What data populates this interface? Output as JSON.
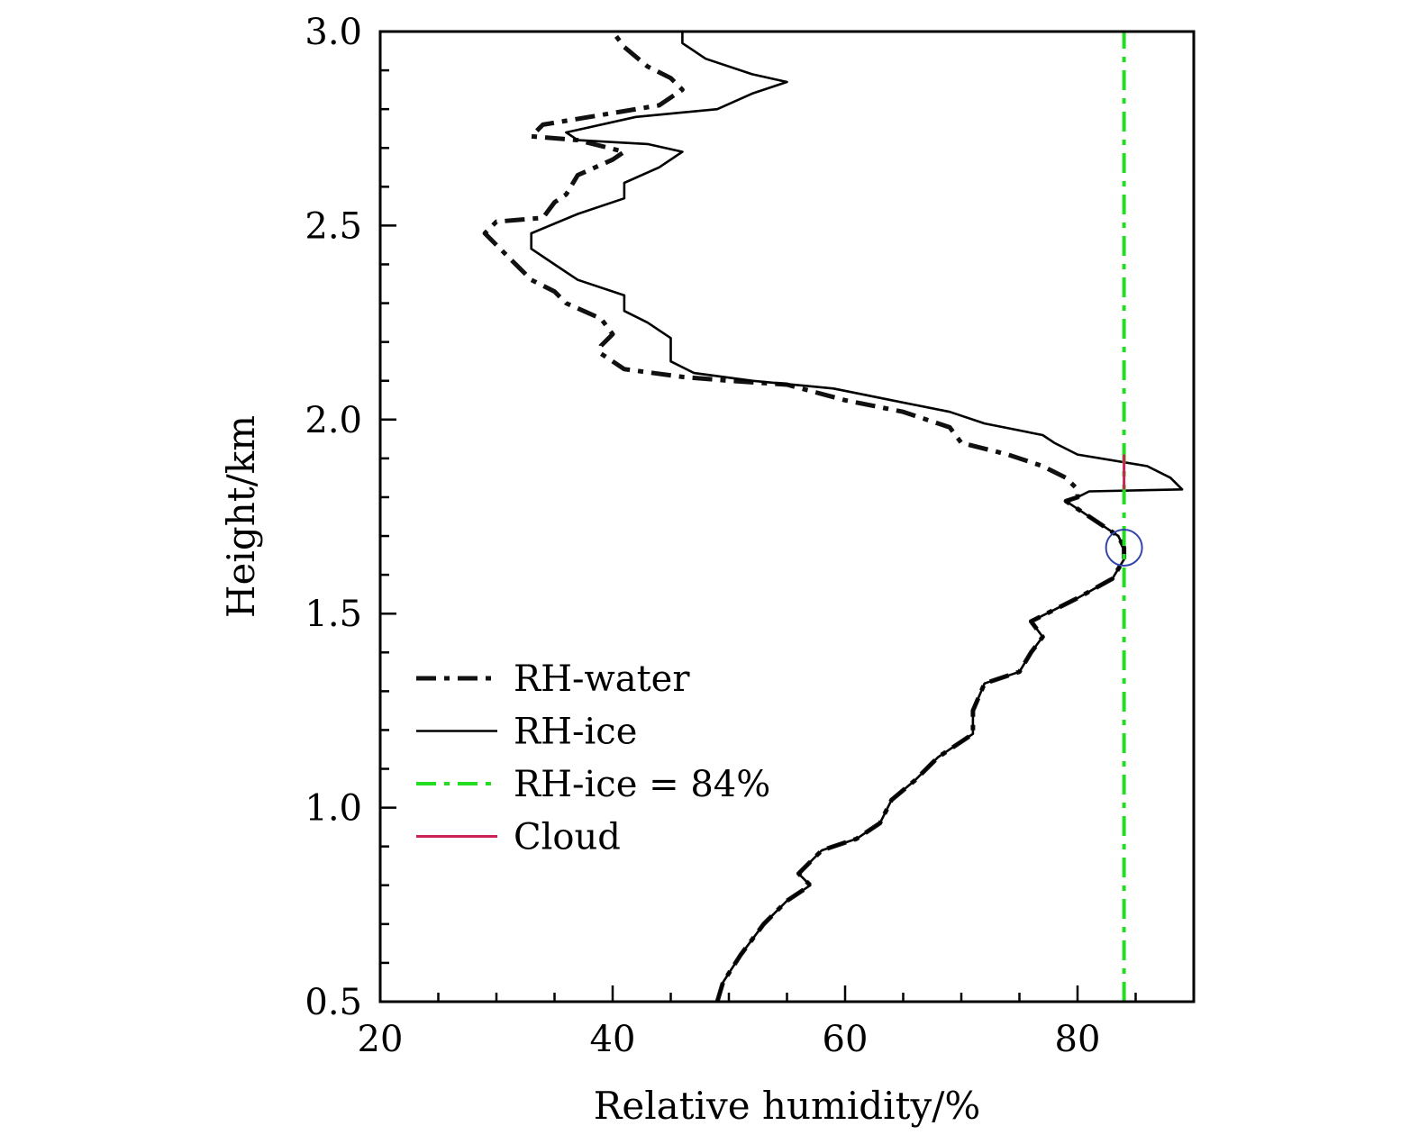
{
  "chart_data": {
    "type": "line",
    "title": "",
    "xlabel": "Relative humidity/%",
    "ylabel": "Height/km",
    "xlim": [
      20,
      90
    ],
    "ylim": [
      0.5,
      3.0
    ],
    "x_ticks": [
      {
        "value": 20,
        "label": "20"
      },
      {
        "value": 40,
        "label": "40"
      },
      {
        "value": 60,
        "label": "60"
      },
      {
        "value": 80,
        "label": "80"
      }
    ],
    "y_ticks": [
      {
        "value": 0.5,
        "label": "0.5"
      },
      {
        "value": 1.0,
        "label": "1.0"
      },
      {
        "value": 1.5,
        "label": "1.5"
      },
      {
        "value": 2.0,
        "label": "2.0"
      },
      {
        "value": 2.5,
        "label": "2.5"
      },
      {
        "value": 3.0,
        "label": "3.0"
      }
    ],
    "grid": false,
    "legend_position": "lower-left",
    "series": [
      {
        "name": "RH-water",
        "style": "dash-dot",
        "color": "#111111",
        "points": [
          [
            49.0,
            0.5
          ],
          [
            49.5,
            0.55
          ],
          [
            51.0,
            0.62
          ],
          [
            53.0,
            0.7
          ],
          [
            55.0,
            0.76
          ],
          [
            57.0,
            0.8
          ],
          [
            56.0,
            0.83
          ],
          [
            58.0,
            0.89
          ],
          [
            61.0,
            0.92
          ],
          [
            63.0,
            0.96
          ],
          [
            64.0,
            1.02
          ],
          [
            66.0,
            1.07
          ],
          [
            68.0,
            1.13
          ],
          [
            71.0,
            1.19
          ],
          [
            71.0,
            1.25
          ],
          [
            72.0,
            1.32
          ],
          [
            75.0,
            1.35
          ],
          [
            76.0,
            1.4
          ],
          [
            77.0,
            1.44
          ],
          [
            76.0,
            1.48
          ],
          [
            78.0,
            1.51
          ],
          [
            80.0,
            1.54
          ],
          [
            83.0,
            1.59
          ],
          [
            84.0,
            1.64
          ],
          [
            84.0,
            1.67
          ],
          [
            83.5,
            1.7
          ],
          [
            82.0,
            1.73
          ],
          [
            80.5,
            1.76
          ],
          [
            79.0,
            1.79
          ],
          [
            80.0,
            1.8
          ],
          [
            80.0,
            1.82
          ],
          [
            79.0,
            1.85
          ],
          [
            77.0,
            1.88
          ],
          [
            74.0,
            1.91
          ],
          [
            70.0,
            1.94
          ],
          [
            69.0,
            1.98
          ],
          [
            65.0,
            2.02
          ],
          [
            60.0,
            2.05
          ],
          [
            55.0,
            2.09
          ],
          [
            50.0,
            2.1
          ],
          [
            46.0,
            2.11
          ],
          [
            41.0,
            2.13
          ],
          [
            39.0,
            2.17
          ],
          [
            39.0,
            2.19
          ],
          [
            40.0,
            2.22
          ],
          [
            39.0,
            2.26
          ],
          [
            36.0,
            2.3
          ],
          [
            35.0,
            2.33
          ],
          [
            33.0,
            2.36
          ],
          [
            31.0,
            2.42
          ],
          [
            29.0,
            2.48
          ],
          [
            30.0,
            2.51
          ],
          [
            34.0,
            2.52
          ],
          [
            35.0,
            2.56
          ],
          [
            36.0,
            2.58
          ],
          [
            37.0,
            2.63
          ],
          [
            40.0,
            2.67
          ],
          [
            41.0,
            2.69
          ],
          [
            37.0,
            2.72
          ],
          [
            33.0,
            2.73
          ],
          [
            34.0,
            2.76
          ],
          [
            40.0,
            2.79
          ],
          [
            44.0,
            2.81
          ],
          [
            46.0,
            2.85
          ],
          [
            45.0,
            2.88
          ],
          [
            43.0,
            2.91
          ],
          [
            41.0,
            2.96
          ],
          [
            40.0,
            3.0
          ]
        ]
      },
      {
        "name": "RH-ice",
        "style": "solid",
        "color": "#000000",
        "points": [
          [
            49.0,
            0.5
          ],
          [
            49.5,
            0.55
          ],
          [
            51.0,
            0.62
          ],
          [
            53.0,
            0.7
          ],
          [
            55.0,
            0.76
          ],
          [
            57.0,
            0.8
          ],
          [
            56.0,
            0.83
          ],
          [
            58.0,
            0.89
          ],
          [
            61.0,
            0.92
          ],
          [
            63.0,
            0.96
          ],
          [
            64.0,
            1.02
          ],
          [
            66.0,
            1.07
          ],
          [
            68.0,
            1.13
          ],
          [
            71.0,
            1.19
          ],
          [
            71.0,
            1.25
          ],
          [
            72.0,
            1.32
          ],
          [
            75.0,
            1.35
          ],
          [
            76.0,
            1.4
          ],
          [
            77.0,
            1.44
          ],
          [
            76.0,
            1.48
          ],
          [
            78.0,
            1.51
          ],
          [
            80.0,
            1.54
          ],
          [
            83.0,
            1.59
          ],
          [
            84.0,
            1.64
          ],
          [
            84.0,
            1.67
          ],
          [
            83.5,
            1.7
          ],
          [
            82.0,
            1.73
          ],
          [
            80.5,
            1.76
          ],
          [
            79.0,
            1.79
          ],
          [
            80.0,
            1.8
          ],
          [
            81.0,
            1.815
          ],
          [
            89.0,
            1.82
          ],
          [
            88.0,
            1.85
          ],
          [
            86.0,
            1.88
          ],
          [
            80.0,
            1.91
          ],
          [
            78.0,
            1.94
          ],
          [
            77.0,
            1.96
          ],
          [
            72.0,
            1.99
          ],
          [
            69.0,
            2.02
          ],
          [
            64.0,
            2.05
          ],
          [
            59.0,
            2.08
          ],
          [
            52.0,
            2.1
          ],
          [
            47.0,
            2.12
          ],
          [
            45.0,
            2.15
          ],
          [
            45.0,
            2.21
          ],
          [
            43.0,
            2.25
          ],
          [
            41.0,
            2.28
          ],
          [
            41.0,
            2.32
          ],
          [
            37.0,
            2.36
          ],
          [
            35.0,
            2.4
          ],
          [
            33.0,
            2.44
          ],
          [
            33.0,
            2.48
          ],
          [
            37.0,
            2.53
          ],
          [
            41.0,
            2.57
          ],
          [
            41.0,
            2.61
          ],
          [
            44.0,
            2.65
          ],
          [
            46.0,
            2.69
          ],
          [
            43.0,
            2.71
          ],
          [
            37.0,
            2.72
          ],
          [
            36.0,
            2.74
          ],
          [
            42.0,
            2.78
          ],
          [
            49.0,
            2.8
          ],
          [
            52.0,
            2.84
          ],
          [
            55.0,
            2.87
          ],
          [
            52.0,
            2.89
          ],
          [
            48.0,
            2.93
          ],
          [
            46.0,
            2.97
          ],
          [
            46.0,
            3.0
          ]
        ]
      },
      {
        "name": "RH-ice = 84%",
        "style": "dash-dot",
        "color": "#22dd22",
        "points": [
          [
            84,
            0.5
          ],
          [
            84,
            3.0
          ]
        ]
      },
      {
        "name": "Cloud",
        "style": "solid",
        "color": "#cc2255",
        "points": [
          [
            84,
            1.82
          ],
          [
            84,
            1.91
          ]
        ]
      }
    ],
    "annotations": [
      {
        "type": "circle",
        "x": 84,
        "y": 1.67,
        "color": "#3344aa"
      }
    ]
  }
}
